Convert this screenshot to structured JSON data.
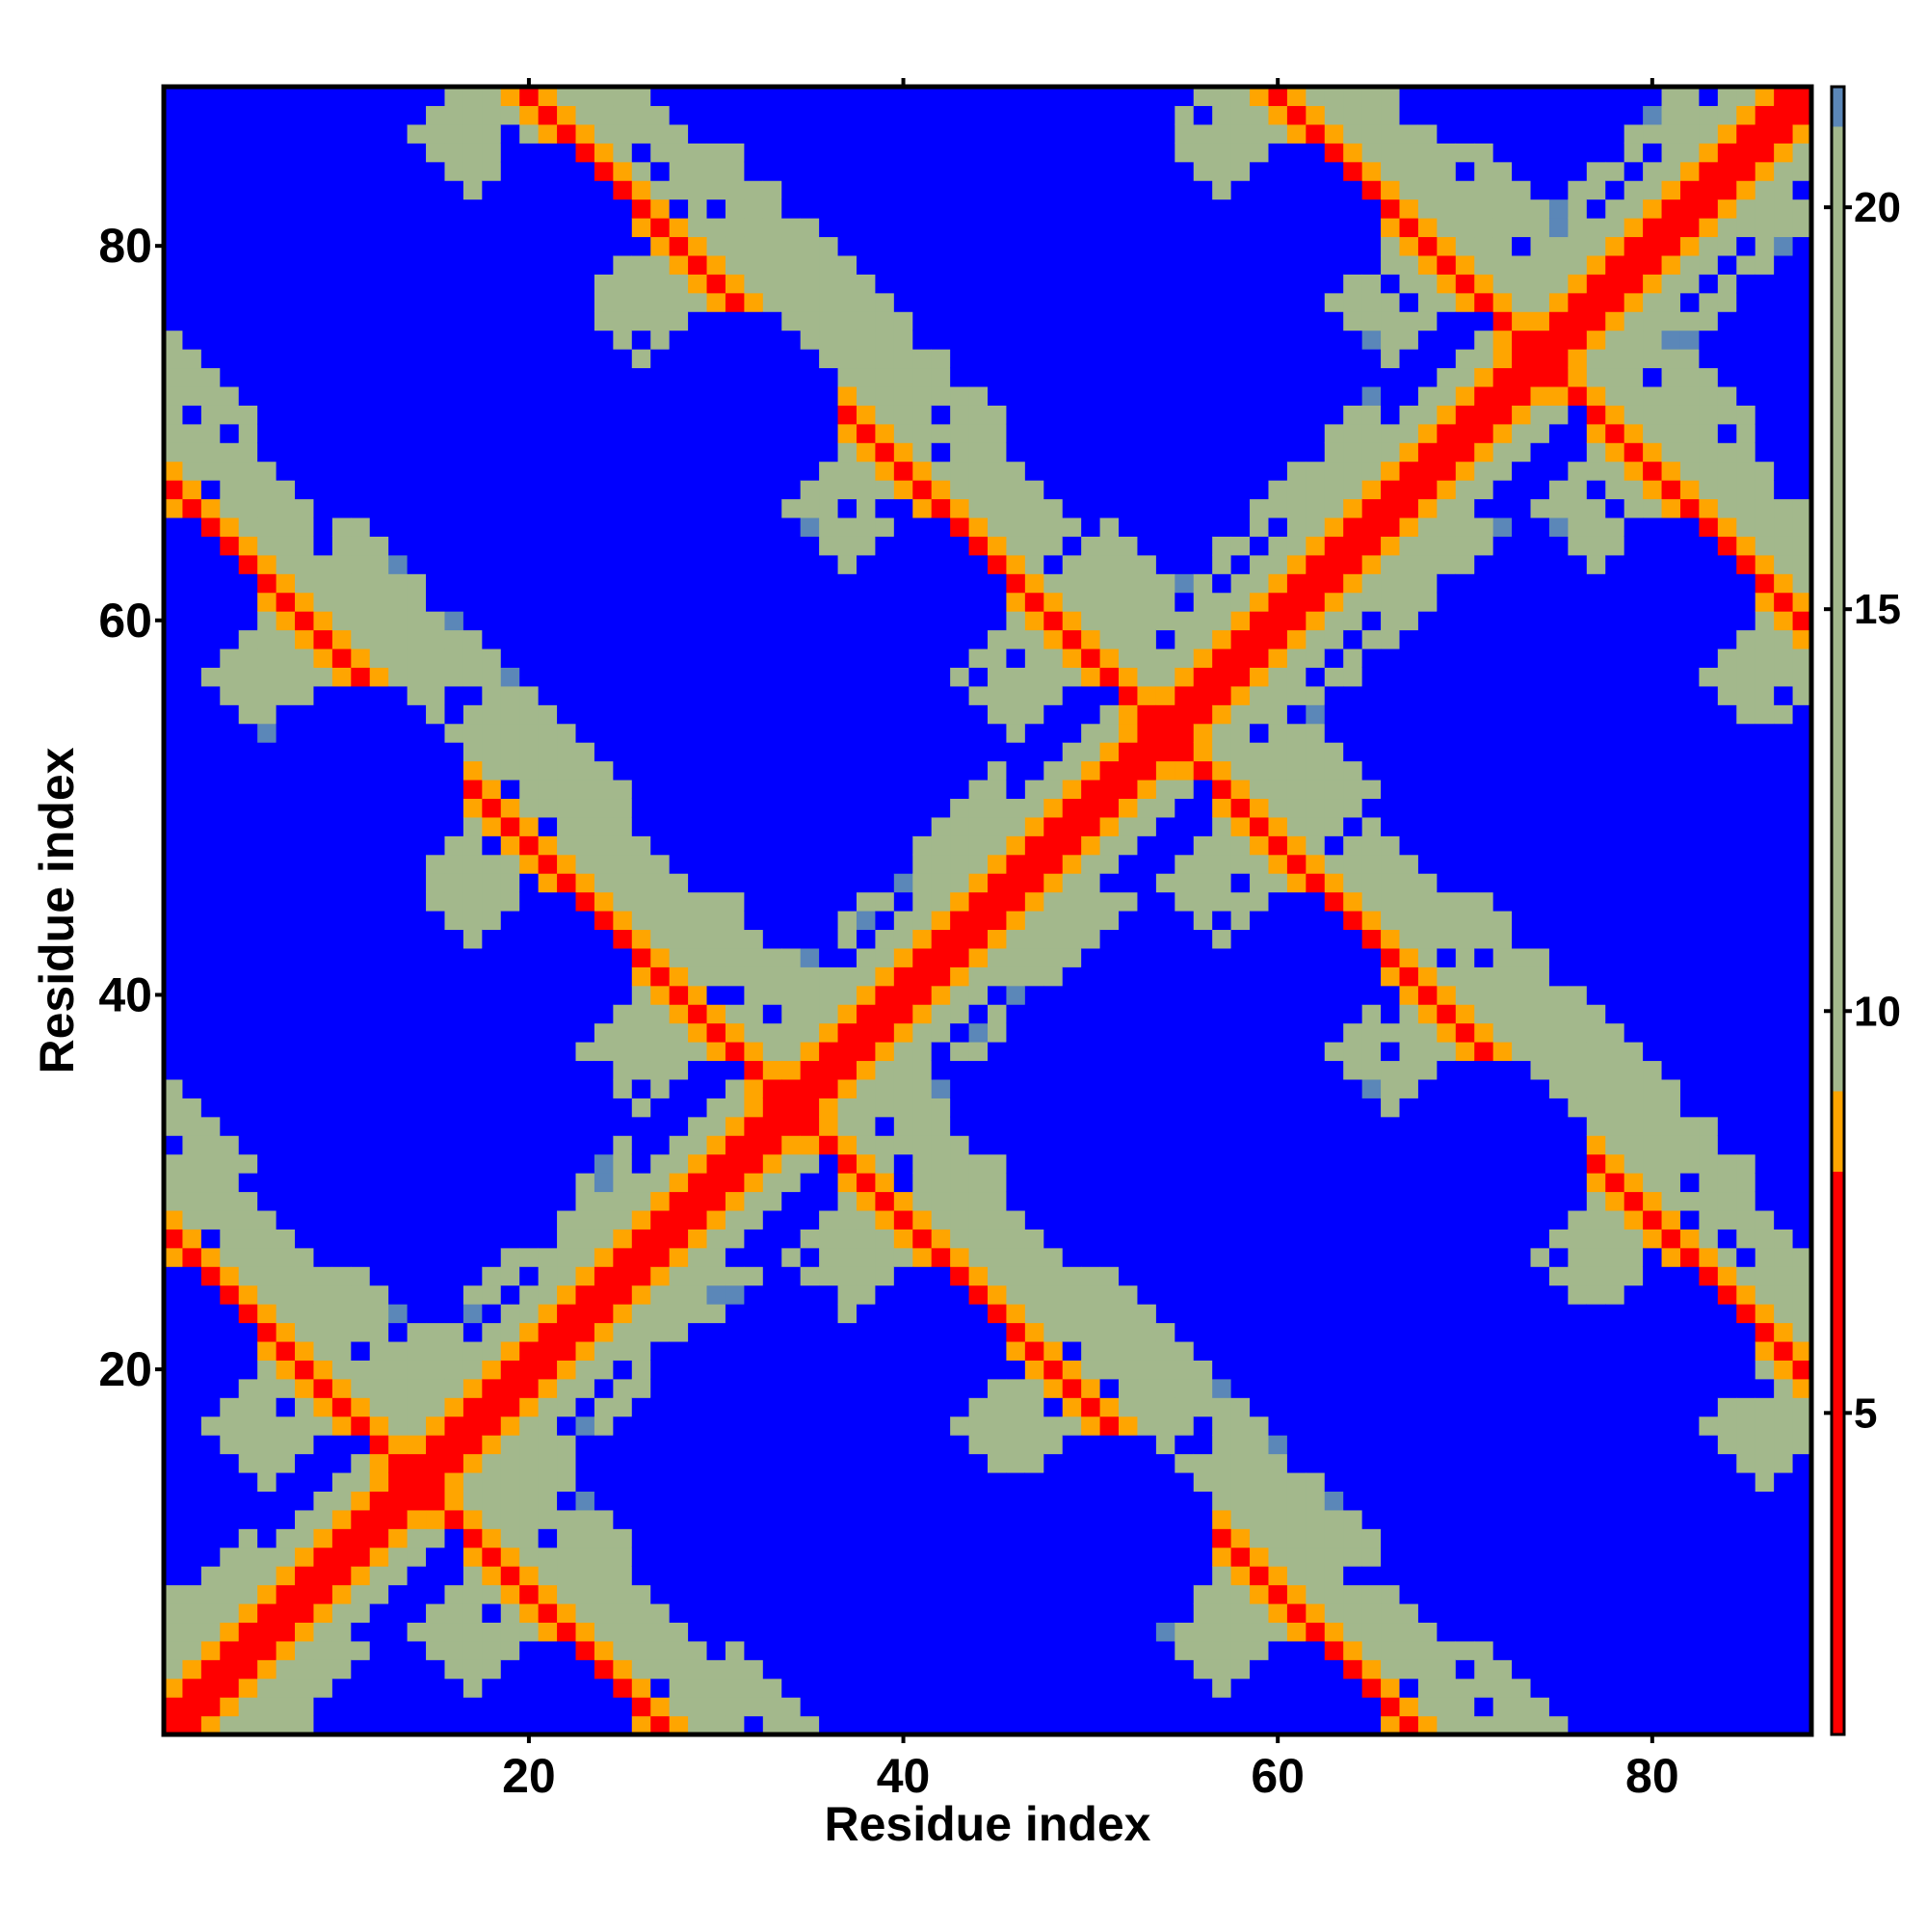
{
  "chart_data": {
    "type": "heatmap",
    "title": "",
    "xlabel": "Residue index",
    "ylabel": "Residue index",
    "n_residues": 88,
    "xlim": [
      1,
      88
    ],
    "ylim": [
      1,
      88
    ],
    "x_ticks": [
      20,
      40,
      60,
      80
    ],
    "y_ticks": [
      20,
      40,
      60,
      80
    ],
    "colorbar": {
      "ticks": [
        5,
        10,
        15,
        20
      ],
      "range": [
        1,
        21.5
      ],
      "breaks": [
        1,
        8,
        9,
        21,
        21.5
      ],
      "colors": [
        "#ff0000",
        "#ffa500",
        "#a3b88c",
        "#5b87b8",
        "#0000ff"
      ]
    },
    "value_min": 1,
    "value_max": 21.5,
    "grid": false,
    "legend_position": "right",
    "structure": {
      "diagonal_value": 1,
      "contact_band_value": 6.5,
      "far_value": 21.5,
      "helix_period": 20,
      "helix_length": 10,
      "antidiagonal_offsets": [
        28,
        68,
        108,
        148
      ],
      "blob_centers_a": [
        [
          1,
          1
        ],
        [
          21,
          21
        ],
        [
          41,
          41
        ],
        [
          61,
          61
        ],
        [
          81,
          81
        ]
      ],
      "blob_centers_b": [
        [
          11,
          11
        ],
        [
          31,
          31
        ],
        [
          51,
          51
        ],
        [
          71,
          71
        ]
      ]
    }
  }
}
